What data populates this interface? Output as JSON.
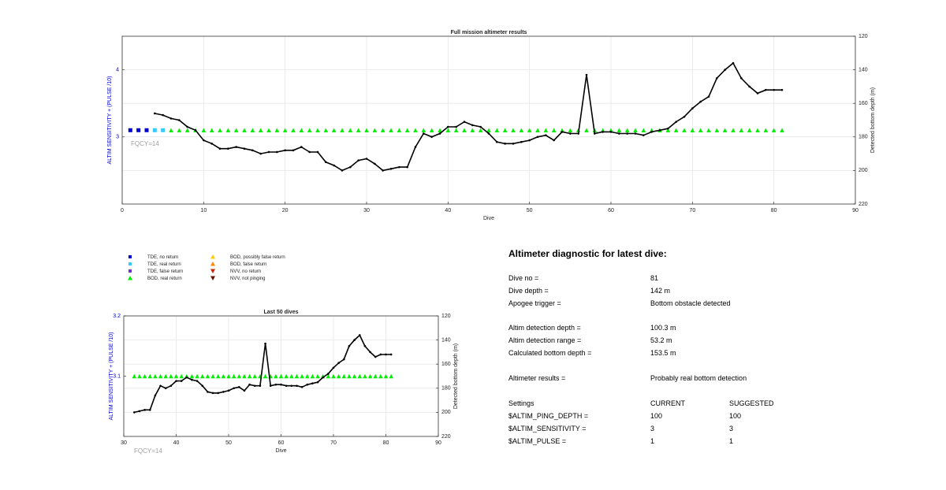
{
  "chart_data": [
    {
      "type": "line",
      "title": "Full mission altimeter results",
      "xlabel": "Dive",
      "ylabel_left": "ALTIM SENSITIVITY + (PULSE /10)",
      "ylabel_right": "Detected bottom depth (m)",
      "annotation": "FQCY=14",
      "xlim": [
        0,
        90
      ],
      "xticks": [
        "0",
        "10",
        "20",
        "30",
        "40",
        "50",
        "60",
        "70",
        "80",
        "90"
      ],
      "ylim_left": [
        2,
        4.5
      ],
      "yticks_left": [
        "3",
        "4"
      ],
      "ylim_right_reversed": [
        120,
        220
      ],
      "yticks_right": [
        "120",
        "140",
        "160",
        "180",
        "200",
        "220"
      ],
      "grid": true,
      "series": [
        {
          "name": "TDE, no return",
          "x": [
            1,
            2,
            3
          ],
          "y": [
            3.1,
            3.1,
            3.1
          ]
        },
        {
          "name": "TDE, real return",
          "x": [
            4,
            5
          ],
          "y": [
            3.1,
            3.1
          ]
        },
        {
          "name": "BOD, real return",
          "x": [
            6,
            7,
            8,
            9,
            10,
            11,
            12,
            13,
            14,
            15,
            16,
            17,
            18,
            19,
            20,
            21,
            22,
            23,
            24,
            25,
            26,
            27,
            28,
            29,
            30,
            31,
            32,
            33,
            34,
            35,
            36,
            37,
            38,
            39,
            40,
            41,
            42,
            43,
            44,
            45,
            46,
            47,
            48,
            49,
            50,
            51,
            52,
            53,
            54,
            55,
            56,
            57,
            58,
            59,
            60,
            61,
            62,
            63,
            64,
            65,
            66,
            67,
            68,
            69,
            70,
            71,
            72,
            73,
            74,
            75,
            76,
            77,
            78,
            79,
            80,
            81
          ],
          "y": [
            3.1,
            3.1,
            3.1,
            3.1,
            3.1,
            3.1,
            3.1,
            3.1,
            3.1,
            3.1,
            3.1,
            3.1,
            3.1,
            3.1,
            3.1,
            3.1,
            3.1,
            3.1,
            3.1,
            3.1,
            3.1,
            3.1,
            3.1,
            3.1,
            3.1,
            3.1,
            3.1,
            3.1,
            3.1,
            3.1,
            3.1,
            3.1,
            3.1,
            3.1,
            3.1,
            3.1,
            3.1,
            3.1,
            3.1,
            3.1,
            3.1,
            3.1,
            3.1,
            3.1,
            3.1,
            3.1,
            3.1,
            3.1,
            3.1,
            3.1,
            3.1,
            3.1,
            3.1,
            3.1,
            3.1,
            3.1,
            3.1,
            3.1,
            3.1,
            3.1,
            3.1,
            3.1,
            3.1,
            3.1,
            3.1,
            3.1,
            3.1,
            3.1,
            3.1,
            3.1,
            3.1,
            3.1,
            3.1,
            3.1,
            3.1,
            3.1
          ]
        },
        {
          "name": "Detected bottom depth",
          "axis": "right",
          "x": [
            4,
            5,
            6,
            7,
            8,
            9,
            10,
            11,
            12,
            13,
            14,
            15,
            16,
            17,
            18,
            19,
            20,
            21,
            22,
            23,
            24,
            25,
            26,
            27,
            28,
            29,
            30,
            31,
            32,
            33,
            34,
            35,
            36,
            37,
            38,
            39,
            40,
            41,
            42,
            43,
            44,
            45,
            46,
            47,
            48,
            49,
            50,
            51,
            52,
            53,
            54,
            55,
            56,
            57,
            58,
            59,
            60,
            61,
            62,
            63,
            64,
            65,
            66,
            67,
            68,
            69,
            70,
            71,
            72,
            73,
            74,
            75,
            76,
            77,
            78,
            79,
            80,
            81
          ],
          "y": [
            166,
            167,
            169,
            170,
            174,
            176,
            182,
            184,
            187,
            187,
            186,
            187,
            188,
            190,
            189,
            189,
            188,
            188,
            186,
            189,
            189,
            195,
            197,
            200,
            198,
            194,
            193,
            196,
            200,
            199,
            198,
            198,
            186,
            178,
            180,
            178,
            174,
            174,
            171,
            173,
            174,
            178,
            183,
            184,
            184,
            183,
            182,
            180,
            179,
            182,
            177,
            178,
            178,
            143,
            178,
            177,
            177,
            178,
            178,
            178,
            179,
            177,
            176,
            175,
            171,
            168,
            163,
            159,
            156,
            145,
            140,
            136,
            145,
            150,
            154,
            152,
            152,
            152
          ]
        }
      ]
    },
    {
      "type": "line",
      "title": "Last 50 dives",
      "xlabel": "Dive",
      "ylabel_left": "ALTIM SENSITIVITY + (PULSE /10)",
      "ylabel_right": "Detected bottom depth (m)",
      "annotation": "FQCY=14",
      "xlim": [
        30,
        90
      ],
      "xticks": [
        "30",
        "40",
        "50",
        "60",
        "70",
        "80",
        "90"
      ],
      "ylim_left": [
        3.0,
        3.2
      ],
      "yticks_left": [
        "3.1",
        "3.2"
      ],
      "ylim_right_reversed": [
        120,
        220
      ],
      "yticks_right": [
        "120",
        "140",
        "160",
        "180",
        "200",
        "220"
      ],
      "grid": true,
      "series": [
        {
          "name": "BOD, real return",
          "x": [
            32,
            33,
            34,
            35,
            36,
            37,
            38,
            39,
            40,
            41,
            42,
            43,
            44,
            45,
            46,
            47,
            48,
            49,
            50,
            51,
            52,
            53,
            54,
            55,
            56,
            57,
            58,
            59,
            60,
            61,
            62,
            63,
            64,
            65,
            66,
            67,
            68,
            69,
            70,
            71,
            72,
            73,
            74,
            75,
            76,
            77,
            78,
            79,
            80,
            81
          ],
          "y": [
            3.1,
            3.1,
            3.1,
            3.1,
            3.1,
            3.1,
            3.1,
            3.1,
            3.1,
            3.1,
            3.1,
            3.1,
            3.1,
            3.1,
            3.1,
            3.1,
            3.1,
            3.1,
            3.1,
            3.1,
            3.1,
            3.1,
            3.1,
            3.1,
            3.1,
            3.1,
            3.1,
            3.1,
            3.1,
            3.1,
            3.1,
            3.1,
            3.1,
            3.1,
            3.1,
            3.1,
            3.1,
            3.1,
            3.1,
            3.1,
            3.1,
            3.1,
            3.1,
            3.1,
            3.1,
            3.1,
            3.1,
            3.1,
            3.1,
            3.1
          ]
        },
        {
          "name": "Detected bottom depth",
          "axis": "right",
          "x": [
            32,
            33,
            34,
            35,
            36,
            37,
            38,
            39,
            40,
            41,
            42,
            43,
            44,
            45,
            46,
            47,
            48,
            49,
            50,
            51,
            52,
            53,
            54,
            55,
            56,
            57,
            58,
            59,
            60,
            61,
            62,
            63,
            64,
            65,
            66,
            67,
            68,
            69,
            70,
            71,
            72,
            73,
            74,
            75,
            76,
            77,
            78,
            79,
            80,
            81
          ],
          "y": [
            200,
            199,
            198,
            198,
            186,
            178,
            180,
            178,
            174,
            174,
            171,
            173,
            174,
            178,
            183,
            184,
            184,
            183,
            182,
            180,
            179,
            182,
            177,
            178,
            178,
            143,
            178,
            177,
            177,
            178,
            178,
            178,
            179,
            177,
            176,
            175,
            171,
            168,
            163,
            159,
            156,
            145,
            140,
            136,
            145,
            150,
            154,
            152,
            152,
            152
          ]
        }
      ]
    }
  ],
  "legend": [
    {
      "label": "TDE, no return",
      "marker": "square",
      "color": "#0000cc"
    },
    {
      "label": "TDE, real return",
      "marker": "square",
      "color": "#33ccff"
    },
    {
      "label": "TDE, false return",
      "marker": "square",
      "color": "#6633cc"
    },
    {
      "label": "BOD, real return",
      "marker": "triangle-up",
      "color": "#00ee00"
    },
    {
      "label": "BOD, possibly false return",
      "marker": "triangle-up",
      "color": "#ffcc00"
    },
    {
      "label": "BOD, false return",
      "marker": "triangle-up",
      "color": "#ff8800"
    },
    {
      "label": "NVV, no return",
      "marker": "triangle-down",
      "color": "#cc2200"
    },
    {
      "label": "NVV, not pinging",
      "marker": "triangle-down",
      "color": "#661100"
    }
  ],
  "diagnostic": {
    "title": "Altimeter diagnostic for latest dive:",
    "rows": [
      {
        "label": "Dive no =",
        "value": "81"
      },
      {
        "label": "Dive depth =",
        "value": "142 m"
      },
      {
        "label": "Apogee trigger =",
        "value": "Bottom obstacle detected"
      },
      {
        "label": "Altim detection depth =",
        "value": "100.3 m"
      },
      {
        "label": "Altim detection range =",
        "value": "53.2 m"
      },
      {
        "label": "Calculated bottom depth =",
        "value": "153.5 m"
      },
      {
        "label": "Altimeter results =",
        "value": "Probably real bottom detection"
      }
    ],
    "settings": {
      "header": [
        "Settings",
        "CURRENT",
        "SUGGESTED"
      ],
      "rows": [
        [
          "$ALTIM_PING_DEPTH =",
          "100",
          "100"
        ],
        [
          "$ALTIM_SENSITIVITY =",
          "3",
          "3"
        ],
        [
          "$ALTIM_PULSE =",
          "1",
          "1"
        ]
      ]
    }
  },
  "colors": {
    "left_axis_label": "#0000cc",
    "depth_line": "#000000",
    "grid": "#e6e6e6",
    "annotation": "#a0a0a0"
  }
}
